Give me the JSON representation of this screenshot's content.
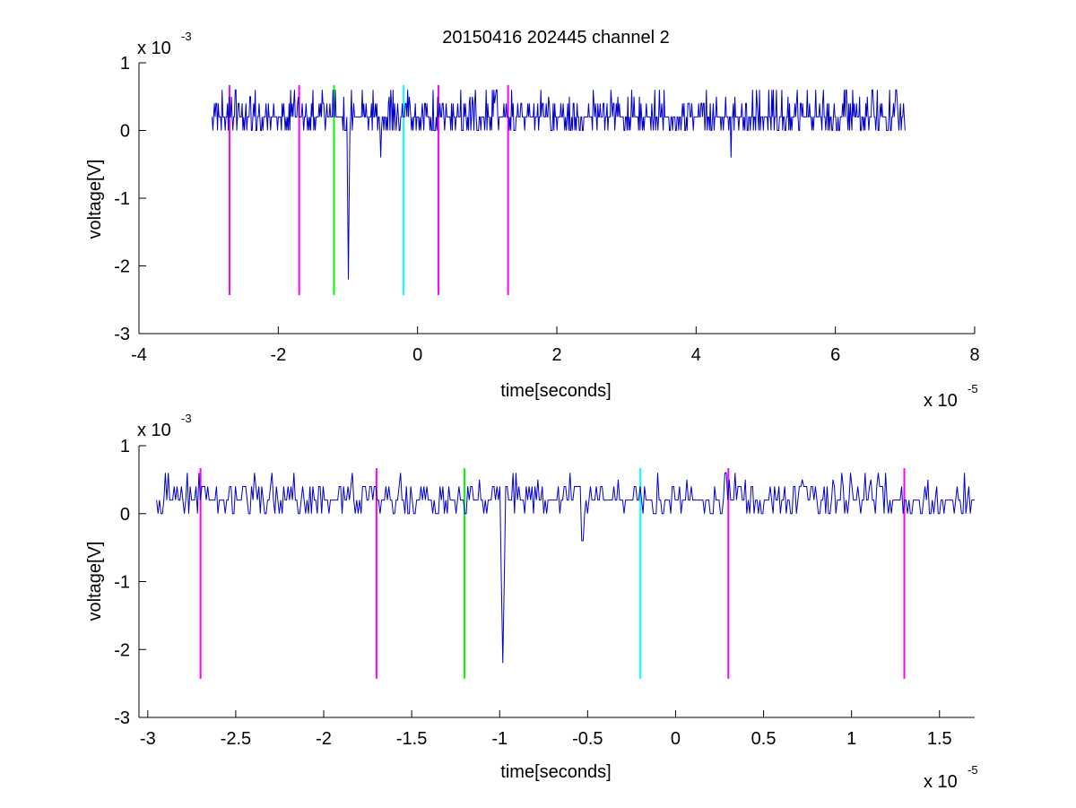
{
  "figure": {
    "title": "20150416 202445 channel 2"
  },
  "chart_data": [
    {
      "type": "line",
      "title": "20150416 202445 channel 2",
      "xlabel": "time[seconds]",
      "ylabel": "voltage[V]",
      "x_multiplier": "x 10",
      "x_exponent": "-5",
      "y_multiplier": "x 10",
      "y_exponent": "-3",
      "xlim": [
        -4,
        8
      ],
      "ylim": [
        -3,
        1
      ],
      "x_ticks": [
        -4,
        -2,
        0,
        2,
        4,
        6,
        8
      ],
      "x_tick_labels": [
        "-4",
        "-2",
        "0",
        "2",
        "4",
        "6",
        "8"
      ],
      "y_ticks": [
        -3,
        -2,
        -1,
        0,
        1
      ],
      "y_tick_labels": [
        "-3",
        "-2",
        "-1",
        "0",
        "1"
      ],
      "signal": {
        "color": "#0000CC",
        "x_start": -2.95,
        "x_end": 7.0,
        "baseline": 0.2,
        "quantum": 0.2,
        "spike": {
          "x": -0.99,
          "min": -2.2
        },
        "small_dips": [
          {
            "x": -0.53,
            "min": -0.4
          },
          {
            "x": 4.5,
            "min": -0.4
          }
        ]
      },
      "markers": [
        {
          "x": -2.7,
          "color": "#FF00FF"
        },
        {
          "x": -1.7,
          "color": "#FF00FF"
        },
        {
          "x": -1.2,
          "color": "#00FF00"
        },
        {
          "x": -0.2,
          "color": "#00FFFF"
        },
        {
          "x": 0.3,
          "color": "#FF00FF"
        },
        {
          "x": 1.3,
          "color": "#FF00FF"
        }
      ],
      "marker_range": [
        -2.43,
        0.67
      ]
    },
    {
      "type": "line",
      "title": "",
      "xlabel": "time[seconds]",
      "ylabel": "voltage[V]",
      "x_multiplier": "x 10",
      "x_exponent": "-5",
      "y_multiplier": "x 10",
      "y_exponent": "-3",
      "xlim": [
        -3.05,
        1.7
      ],
      "ylim": [
        -3,
        1
      ],
      "x_ticks": [
        -3,
        -2.5,
        -2,
        -1.5,
        -1,
        -0.5,
        0,
        0.5,
        1,
        1.5
      ],
      "x_tick_labels": [
        "-3",
        "-2.5",
        "-2",
        "-1.5",
        "-1",
        "-0.5",
        "0",
        "0.5",
        "1",
        "1.5"
      ],
      "y_ticks": [
        -3,
        -2,
        -1,
        0,
        1
      ],
      "y_tick_labels": [
        "-3",
        "-2",
        "-1",
        "0",
        "1"
      ],
      "signal": {
        "color": "#0000CC",
        "x_start": -2.95,
        "x_end": 1.7,
        "baseline": 0.2,
        "quantum": 0.2,
        "spike": {
          "x": -0.98,
          "min": -2.2
        },
        "small_dips": [
          {
            "x": -0.53,
            "min": -0.4
          }
        ]
      },
      "markers": [
        {
          "x": -2.7,
          "color": "#FF00FF"
        },
        {
          "x": -1.7,
          "color": "#FF00FF"
        },
        {
          "x": -1.2,
          "color": "#00FF00"
        },
        {
          "x": -0.2,
          "color": "#00FFFF"
        },
        {
          "x": 0.3,
          "color": "#FF00FF"
        },
        {
          "x": 1.3,
          "color": "#FF00FF"
        }
      ],
      "marker_range": [
        -2.43,
        0.67
      ]
    }
  ]
}
